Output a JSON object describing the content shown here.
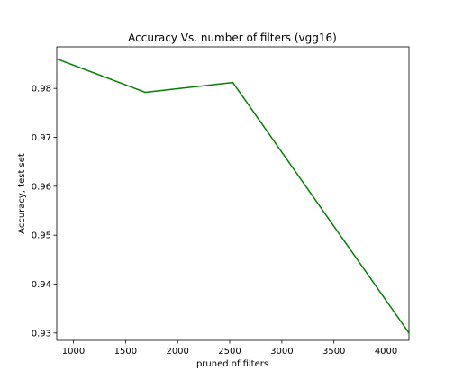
{
  "chart_data": {
    "type": "line",
    "title": "Accuracy Vs. number of filters (vgg16)",
    "xlabel": "pruned of filters",
    "ylabel": "Accuracy, test set",
    "xlim": [
      840,
      4220
    ],
    "ylim": [
      0.9285,
      0.9885
    ],
    "xticks": [
      1000,
      1500,
      2000,
      2500,
      3000,
      3500,
      4000
    ],
    "yticks": [
      0.93,
      0.94,
      0.95,
      0.96,
      0.97,
      0.98
    ],
    "xtick_labels": [
      "1000",
      "1500",
      "2000",
      "2500",
      "3000",
      "3500",
      "4000"
    ],
    "ytick_labels": [
      "0.93",
      "0.94",
      "0.95",
      "0.96",
      "0.97",
      "0.98"
    ],
    "grid": false,
    "legend": "none",
    "series": [
      {
        "color": "#008000",
        "x": [
          845,
          1690,
          2530,
          4220
        ],
        "y": [
          0.986,
          0.9792,
          0.9812,
          0.93
        ]
      }
    ]
  }
}
